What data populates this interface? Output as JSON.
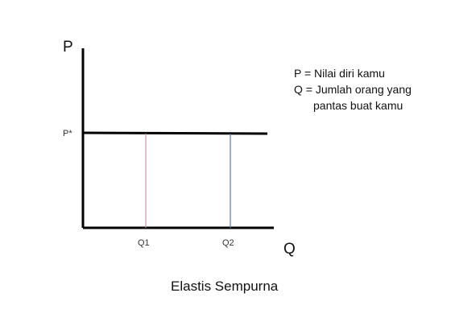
{
  "diagram": {
    "axes": {
      "y_label": "P",
      "x_label": "Q"
    },
    "price_line": {
      "label": "P*"
    },
    "quantity_markers": [
      {
        "label": "Q1",
        "color": "#d98aa0"
      },
      {
        "label": "Q2",
        "color": "#5577aa"
      }
    ],
    "legend": {
      "line_1": "P = Nilai diri kamu",
      "line_2": "Q = Jumlah orang yang",
      "line_3": "pantas buat kamu"
    },
    "caption": "Elastis Sempurna"
  }
}
